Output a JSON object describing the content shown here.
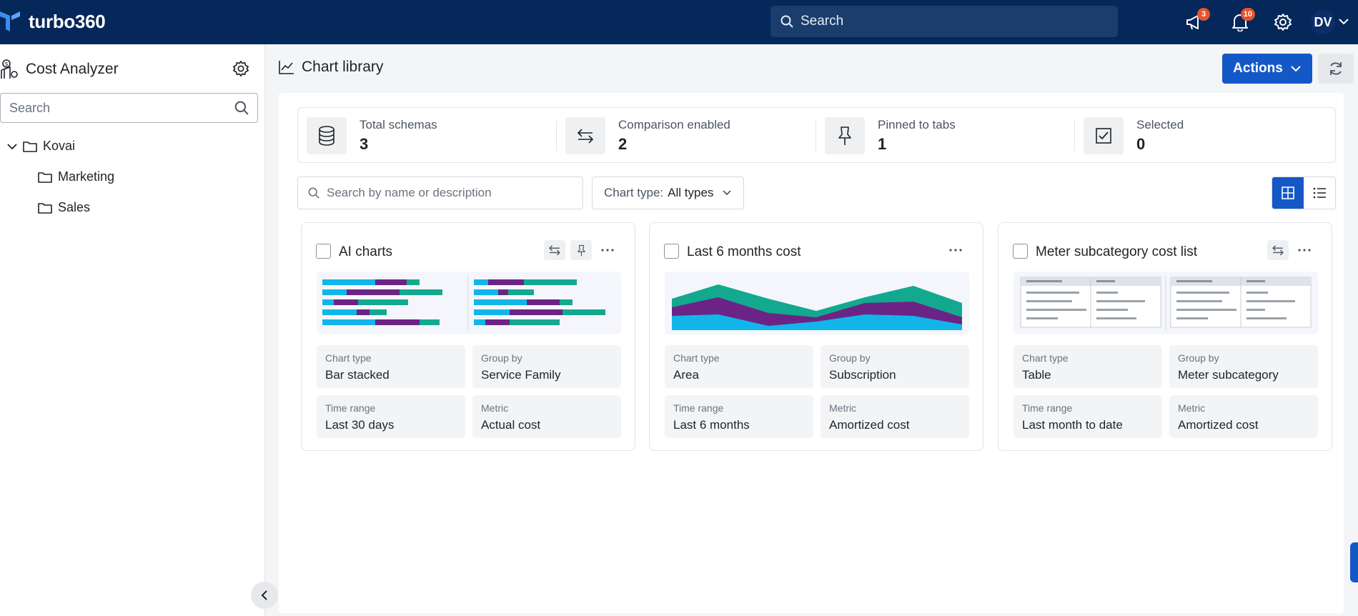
{
  "brand": {
    "name": "turbo360"
  },
  "topbar": {
    "search_label": "Search",
    "announcements_count": "3",
    "notifications_count": "10",
    "user_initials": "DV"
  },
  "sidebar": {
    "title": "Cost Analyzer",
    "search_placeholder": "Search",
    "tree": [
      {
        "label": "Kovai"
      },
      {
        "label": "Marketing"
      },
      {
        "label": "Sales"
      }
    ]
  },
  "main": {
    "title": "Chart library",
    "actions_label": "Actions"
  },
  "stats": [
    {
      "label": "Total schemas",
      "value": "3",
      "icon": "database-icon"
    },
    {
      "label": "Comparison enabled",
      "value": "2",
      "icon": "swap-arrows-icon"
    },
    {
      "label": "Pinned to tabs",
      "value": "1",
      "icon": "pin-icon"
    },
    {
      "label": "Selected",
      "value": "0",
      "icon": "checkbox-icon"
    }
  ],
  "filters": {
    "search_placeholder": "Search by name or description",
    "chart_type_label": "Chart type:",
    "chart_type_value": "All types"
  },
  "cards": [
    {
      "title": "AI charts",
      "preview": "stacked-bar-preview",
      "meta": [
        {
          "label": "Chart type",
          "value": "Bar stacked"
        },
        {
          "label": "Group by",
          "value": "Service Family"
        },
        {
          "label": "Time range",
          "value": "Last 30 days"
        },
        {
          "label": "Metric",
          "value": "Actual cost"
        }
      ]
    },
    {
      "title": "Last 6 months cost",
      "preview": "area-preview",
      "meta": [
        {
          "label": "Chart type",
          "value": "Area"
        },
        {
          "label": "Group by",
          "value": "Subscription"
        },
        {
          "label": "Time range",
          "value": "Last 6 months"
        },
        {
          "label": "Metric",
          "value": "Amortized cost"
        }
      ]
    },
    {
      "title": "Meter subcategory cost list",
      "preview": "table-preview",
      "meta": [
        {
          "label": "Chart type",
          "value": "Table"
        },
        {
          "label": "Group by",
          "value": "Meter subcategory"
        },
        {
          "label": "Time range",
          "value": "Last month to date"
        },
        {
          "label": "Metric",
          "value": "Amortized cost"
        }
      ]
    }
  ],
  "colors": {
    "topbar": "#05275a",
    "accent": "#1458c8",
    "series_cyan": "#12b5ea",
    "series_purple": "#6b2485",
    "series_teal": "#13a98f",
    "badge": "#e5532d"
  }
}
